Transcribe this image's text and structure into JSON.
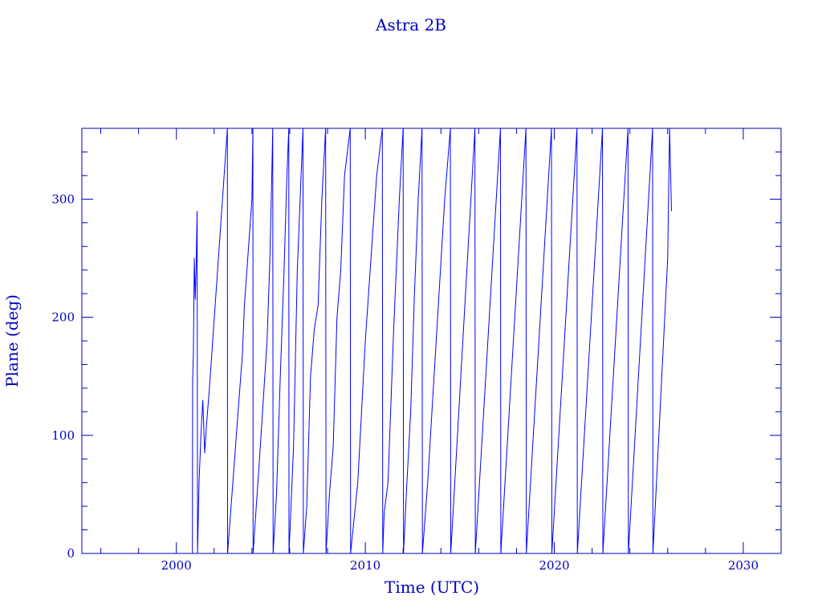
{
  "chart_data": {
    "type": "line",
    "title": "Astra 2B",
    "xlabel": "Time (UTC)",
    "ylabel": "Plane (deg)",
    "xlim": [
      1995,
      2032
    ],
    "ylim": [
      0,
      360
    ],
    "x_ticks": [
      2000,
      2010,
      2020,
      2030
    ],
    "y_ticks": [
      0,
      100,
      200,
      300
    ],
    "grid": false,
    "line_color": "#0000ff",
    "axis_color": "#0000c0",
    "series": [
      {
        "points": [
          [
            2000.85,
            0
          ],
          [
            2000.86,
            145
          ],
          [
            2000.9,
            170
          ],
          [
            2000.95,
            250
          ],
          [
            2001.0,
            215
          ],
          [
            2001.05,
            245
          ],
          [
            2001.1,
            290
          ],
          [
            2001.12,
            0
          ],
          [
            2001.2,
            60
          ],
          [
            2001.3,
            100
          ],
          [
            2001.4,
            130
          ],
          [
            2001.5,
            85
          ],
          [
            2001.6,
            110
          ],
          [
            2001.75,
            140
          ],
          [
            2002.7,
            360
          ],
          [
            2002.71,
            0
          ],
          [
            2003.5,
            170
          ],
          [
            2003.6,
            210
          ],
          [
            2004.0,
            300
          ],
          [
            2004.05,
            360
          ],
          [
            2004.06,
            0
          ],
          [
            2004.4,
            80
          ],
          [
            2004.8,
            180
          ],
          [
            2004.95,
            250
          ],
          [
            2005.05,
            320
          ],
          [
            2005.1,
            360
          ],
          [
            2005.12,
            0
          ],
          [
            2005.3,
            50
          ],
          [
            2005.5,
            150
          ],
          [
            2005.7,
            240
          ],
          [
            2005.85,
            320
          ],
          [
            2005.95,
            360
          ],
          [
            2005.96,
            0
          ],
          [
            2006.2,
            90
          ],
          [
            2006.4,
            240
          ],
          [
            2006.55,
            300
          ],
          [
            2006.7,
            360
          ],
          [
            2006.72,
            0
          ],
          [
            2006.9,
            40
          ],
          [
            2007.1,
            150
          ],
          [
            2007.3,
            190
          ],
          [
            2007.5,
            210
          ],
          [
            2007.7,
            300
          ],
          [
            2007.9,
            360
          ],
          [
            2007.92,
            0
          ],
          [
            2008.1,
            50
          ],
          [
            2008.3,
            90
          ],
          [
            2008.5,
            200
          ],
          [
            2008.7,
            240
          ],
          [
            2008.9,
            320
          ],
          [
            2009.2,
            360
          ],
          [
            2009.22,
            0
          ],
          [
            2009.6,
            60
          ],
          [
            2009.8,
            120
          ],
          [
            2010.0,
            180
          ],
          [
            2010.3,
            250
          ],
          [
            2010.6,
            320
          ],
          [
            2010.9,
            360
          ],
          [
            2010.92,
            0
          ],
          [
            2011.0,
            35
          ],
          [
            2011.2,
            60
          ],
          [
            2011.5,
            190
          ],
          [
            2011.8,
            300
          ],
          [
            2012.0,
            360
          ],
          [
            2012.02,
            0
          ],
          [
            2012.2,
            60
          ],
          [
            2012.4,
            120
          ],
          [
            2012.6,
            220
          ],
          [
            2012.8,
            300
          ],
          [
            2013.0,
            360
          ],
          [
            2013.02,
            0
          ],
          [
            2013.3,
            60
          ],
          [
            2013.6,
            140
          ],
          [
            2013.9,
            220
          ],
          [
            2014.2,
            300
          ],
          [
            2014.5,
            360
          ],
          [
            2014.52,
            0
          ],
          [
            2015.8,
            360
          ],
          [
            2015.82,
            0
          ],
          [
            2017.15,
            360
          ],
          [
            2017.17,
            0
          ],
          [
            2018.5,
            360
          ],
          [
            2018.52,
            0
          ],
          [
            2019.85,
            360
          ],
          [
            2019.87,
            0
          ],
          [
            2021.2,
            360
          ],
          [
            2021.22,
            0
          ],
          [
            2022.55,
            360
          ],
          [
            2022.57,
            0
          ],
          [
            2023.9,
            360
          ],
          [
            2023.92,
            0
          ],
          [
            2025.2,
            360
          ],
          [
            2025.22,
            0
          ],
          [
            2026.0,
            250
          ],
          [
            2026.1,
            360
          ],
          [
            2026.2,
            290
          ]
        ]
      }
    ]
  }
}
